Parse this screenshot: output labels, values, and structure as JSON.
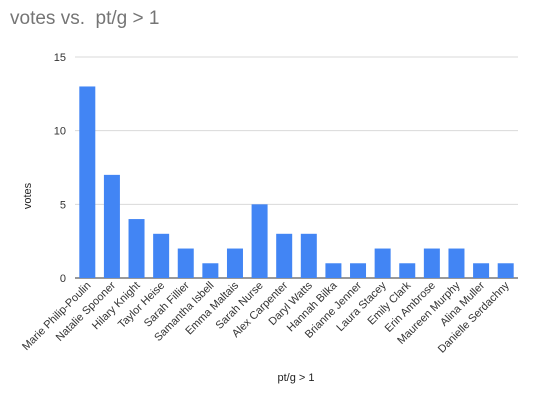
{
  "chart_data": {
    "type": "bar",
    "title": "votes vs.  pt/g > 1",
    "xlabel": "pt/g > 1",
    "ylabel": "votes",
    "ylim": [
      0,
      15
    ],
    "yticks": [
      0,
      5,
      10,
      15
    ],
    "grid": true,
    "legend": "none",
    "bar_color": "#4285f4",
    "categories": [
      "Marie Philip-Poulin",
      "Natalie Spooner",
      "Hilary Knight",
      "Taylor Heise",
      "Sarah Fillier",
      "Samantha Isbell",
      "Emma Maltais",
      "Sarah Nurse",
      "Alex Carpenter",
      "Daryl Watts",
      "Hannah Bilka",
      "Brianne Jenner",
      "Laura Stacey",
      "Emily Clark",
      "Erin Ambrose",
      "Maureen Murphy",
      "Alina Muller",
      "Danielle Serdachny"
    ],
    "values": [
      13,
      7,
      4,
      3,
      2,
      1,
      2,
      5,
      3,
      3,
      1,
      1,
      2,
      1,
      2,
      2,
      1,
      1
    ]
  }
}
